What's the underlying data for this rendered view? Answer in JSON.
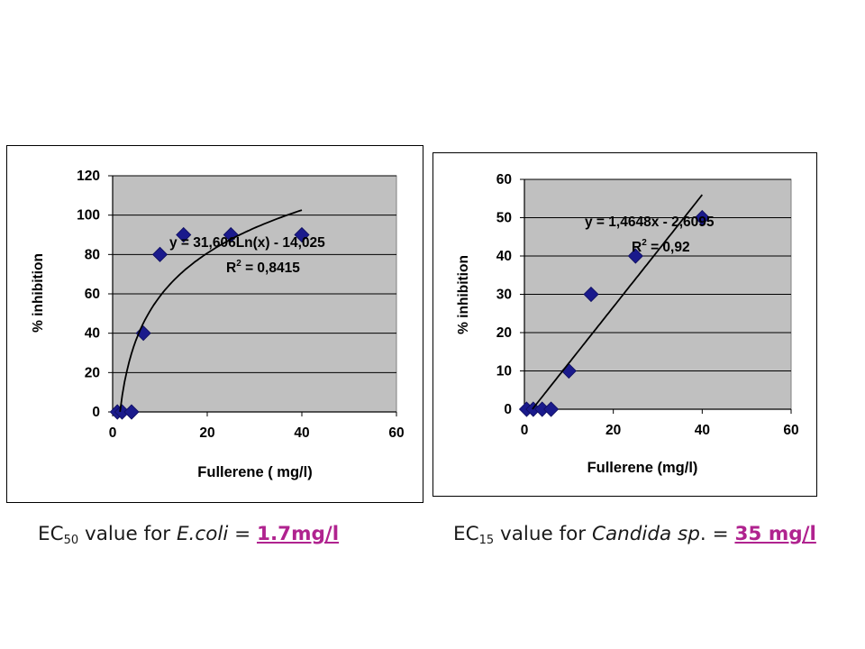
{
  "chart_data": [
    {
      "type": "scatter",
      "xlabel": "Fullerene ( mg/l)",
      "ylabel": "% inhibition",
      "xlim": [
        0,
        60
      ],
      "ylim": [
        0,
        120
      ],
      "xticks": [
        "0",
        "20",
        "40",
        "60"
      ],
      "yticks": [
        "0",
        "20",
        "40",
        "60",
        "80",
        "100",
        "120"
      ],
      "grid": true,
      "plot_background": "#c0c0c0",
      "marker_color": "#1a1a8c",
      "points": [
        {
          "x": 1,
          "y": 0
        },
        {
          "x": 2,
          "y": 0
        },
        {
          "x": 4,
          "y": 0
        },
        {
          "x": 6.5,
          "y": 40
        },
        {
          "x": 10,
          "y": 80
        },
        {
          "x": 15,
          "y": 90
        },
        {
          "x": 25,
          "y": 90
        },
        {
          "x": 40,
          "y": 90
        }
      ],
      "trendline": {
        "kind": "logarithmic",
        "a": 31.606,
        "b": -14.025,
        "x_from": 1.56,
        "x_to": 40
      },
      "equation": "y = 31,606Ln(x) - 14,025",
      "r2_prefix": "R",
      "r2_sup": "2",
      "r2_suffix": " = 0,8415"
    },
    {
      "type": "scatter",
      "xlabel": "Fullerene (mg/l)",
      "ylabel": "% inhibition",
      "xlim": [
        0,
        60
      ],
      "ylim": [
        0,
        60
      ],
      "xticks": [
        "0",
        "20",
        "40",
        "60"
      ],
      "yticks": [
        "0",
        "10",
        "20",
        "30",
        "40",
        "50",
        "60"
      ],
      "grid": true,
      "plot_background": "#c0c0c0",
      "marker_color": "#1a1a8c",
      "points": [
        {
          "x": 0.5,
          "y": 0
        },
        {
          "x": 2,
          "y": 0
        },
        {
          "x": 4,
          "y": 0
        },
        {
          "x": 6,
          "y": 0
        },
        {
          "x": 10,
          "y": 10
        },
        {
          "x": 15,
          "y": 30
        },
        {
          "x": 25,
          "y": 40
        },
        {
          "x": 40,
          "y": 50
        }
      ],
      "trendline": {
        "kind": "linear",
        "m": 1.4648,
        "c": -2.6095,
        "x_from": 1.8,
        "x_to": 40
      },
      "equation": "y = 1,4648x - 2,6095",
      "r2_prefix": "R",
      "r2_sup": "2",
      "r2_suffix": " = 0,92"
    }
  ],
  "captions": {
    "left": {
      "ec": "EC",
      "ec_sub": "50",
      "text": " value for ",
      "organism": "E.coli",
      "eq": " = ",
      "value": "1.7mg/l "
    },
    "right": {
      "ec": "EC",
      "ec_sub": "15",
      "text": " value for ",
      "organism": "Candida sp",
      "after_organism": ". = ",
      "value": "35 mg/l"
    }
  }
}
